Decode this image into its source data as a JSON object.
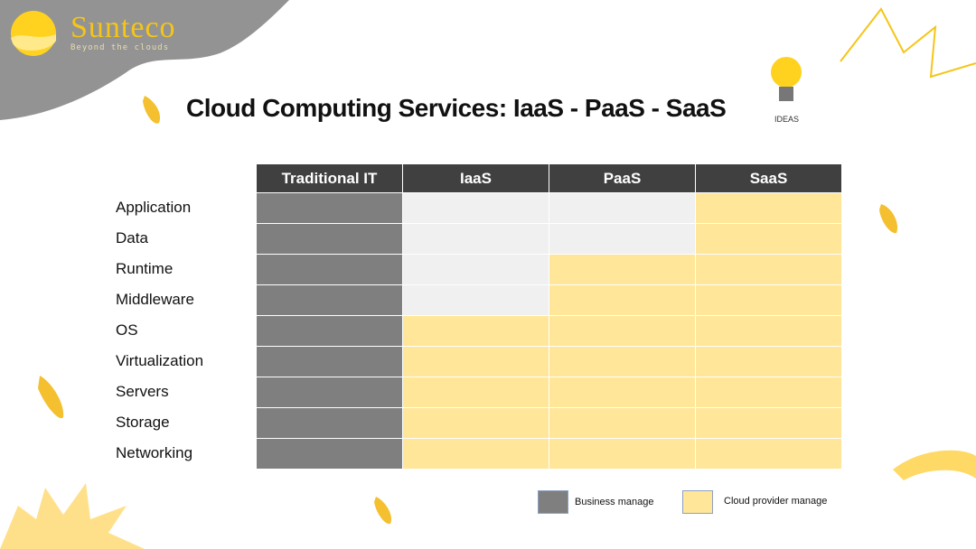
{
  "brand": {
    "name": "Sunteco",
    "tagline": "Beyond the clouds"
  },
  "title": "Cloud Computing Services: IaaS - PaaS - SaaS",
  "ideas_label": "IDEAS",
  "colors": {
    "business": "#7f7f7f",
    "business-light": "#f0f0f0",
    "provider": "#ffe699",
    "header": "#404040",
    "accent": "#f5c518"
  },
  "columns": [
    "Traditional IT",
    "IaaS",
    "PaaS",
    "SaaS"
  ],
  "rows": [
    {
      "label": "Application",
      "cells": [
        "business",
        "business-light",
        "business-light",
        "provider"
      ]
    },
    {
      "label": "Data",
      "cells": [
        "business",
        "business-light",
        "business-light",
        "provider"
      ]
    },
    {
      "label": "Runtime",
      "cells": [
        "business",
        "business-light",
        "provider",
        "provider"
      ]
    },
    {
      "label": "Middleware",
      "cells": [
        "business",
        "business-light",
        "provider",
        "provider"
      ]
    },
    {
      "label": "OS",
      "cells": [
        "business",
        "provider",
        "provider",
        "provider"
      ]
    },
    {
      "label": "Virtualization",
      "cells": [
        "business",
        "provider",
        "provider",
        "provider"
      ]
    },
    {
      "label": "Servers",
      "cells": [
        "business",
        "provider",
        "provider",
        "provider"
      ]
    },
    {
      "label": "Storage",
      "cells": [
        "business",
        "provider",
        "provider",
        "provider"
      ]
    },
    {
      "label": "Networking",
      "cells": [
        "business",
        "provider",
        "provider",
        "provider"
      ]
    }
  ],
  "legend": {
    "business": "Business manage",
    "provider": "Cloud provider manage"
  }
}
